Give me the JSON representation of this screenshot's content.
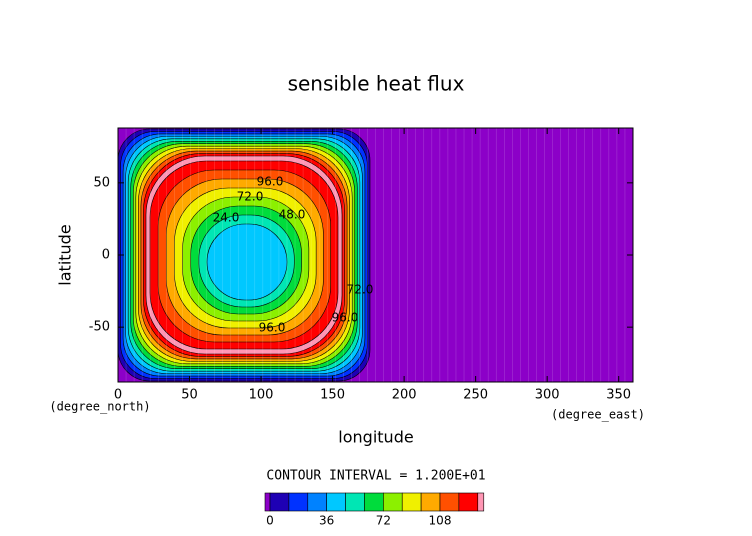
{
  "chart_data": {
    "type": "contour",
    "title": "sensible heat flux",
    "x_label": "longitude",
    "y_label": "latitude",
    "x_unit": "(degree_east)",
    "y_unit": "(degree_north)",
    "xlim": [
      0,
      360
    ],
    "xticks": [
      0,
      50,
      100,
      150,
      200,
      250,
      300,
      350
    ],
    "ylim": [
      -88,
      88
    ],
    "yticks": [
      -50,
      0,
      50
    ],
    "contour_interval_text": "CONTOUR INTERVAL = 1.200E+01",
    "levels": [
      0,
      12,
      24,
      36,
      48,
      60,
      72,
      84,
      96,
      108,
      120,
      132
    ],
    "colors": [
      "#8c00c8",
      "#1e00b4",
      "#0032ff",
      "#0082ff",
      "#00c8ff",
      "#00e6b4",
      "#00dc3c",
      "#8cf000",
      "#f0f000",
      "#ffaa00",
      "#ff5000",
      "#ff0000",
      "#ff96b4"
    ],
    "colorbar_ticks": [
      0,
      36,
      72,
      108
    ],
    "contour_labels": [
      {
        "value": 96,
        "label": "96.0"
      },
      {
        "value": 72,
        "label": "72.0"
      },
      {
        "value": 48,
        "label": "48.0"
      },
      {
        "value": 96,
        "label": "96.0"
      },
      {
        "value": 96,
        "label": "96.0"
      },
      {
        "value": 72,
        "label": "72.0"
      },
      {
        "value": 24,
        "label": "24.0"
      }
    ]
  }
}
